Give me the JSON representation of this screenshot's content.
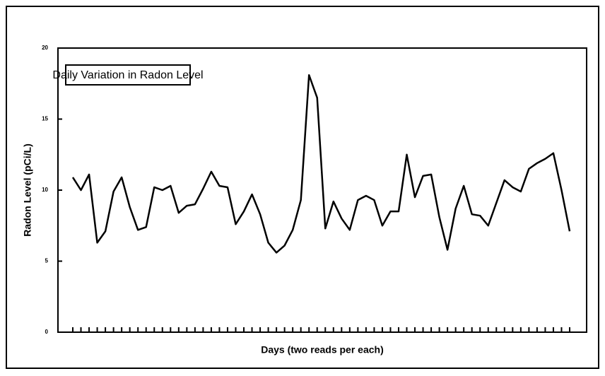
{
  "chart_data": {
    "type": "line",
    "title": "Daily Variation in Radon Level",
    "x_label": "Days (two reads per each)",
    "y_label": "Radon Level (pCi/L)",
    "categories": [
      null,
      null,
      null,
      null,
      null,
      null,
      null,
      null,
      null,
      null,
      null,
      null,
      null,
      null,
      null,
      null,
      null,
      null,
      null,
      null,
      null,
      null,
      null,
      null,
      null,
      null,
      null,
      null,
      null,
      null,
      null,
      null,
      null,
      null,
      null,
      null,
      null,
      null,
      null,
      null,
      null,
      null,
      null,
      null,
      null,
      null,
      null,
      null,
      null,
      null,
      null,
      null,
      null,
      null,
      null,
      null,
      null,
      null,
      null,
      null,
      null,
      null
    ],
    "values": [
      10.9,
      10.0,
      11.1,
      6.3,
      7.1,
      9.9,
      10.9,
      8.8,
      7.2,
      7.4,
      10.2,
      10.0,
      10.3,
      8.4,
      8.9,
      9.0,
      10.1,
      11.3,
      10.3,
      10.2,
      7.6,
      8.5,
      9.7,
      8.3,
      6.3,
      5.6,
      6.1,
      7.2,
      9.3,
      18.1,
      16.5,
      7.3,
      9.2,
      8.0,
      7.2,
      9.3,
      9.6,
      9.3,
      7.5,
      8.5,
      8.5,
      12.5,
      9.5,
      11.0,
      11.1,
      8.1,
      5.8,
      8.7,
      10.3,
      8.3,
      8.2,
      7.5,
      9.1,
      10.7,
      10.2,
      9.9,
      11.5,
      11.9,
      12.2,
      12.6,
      10.0,
      7.1
    ],
    "color": "#000000",
    "ylim": [
      0,
      20
    ],
    "yticks": [
      0,
      5,
      10,
      15,
      20
    ],
    "grid": false
  }
}
